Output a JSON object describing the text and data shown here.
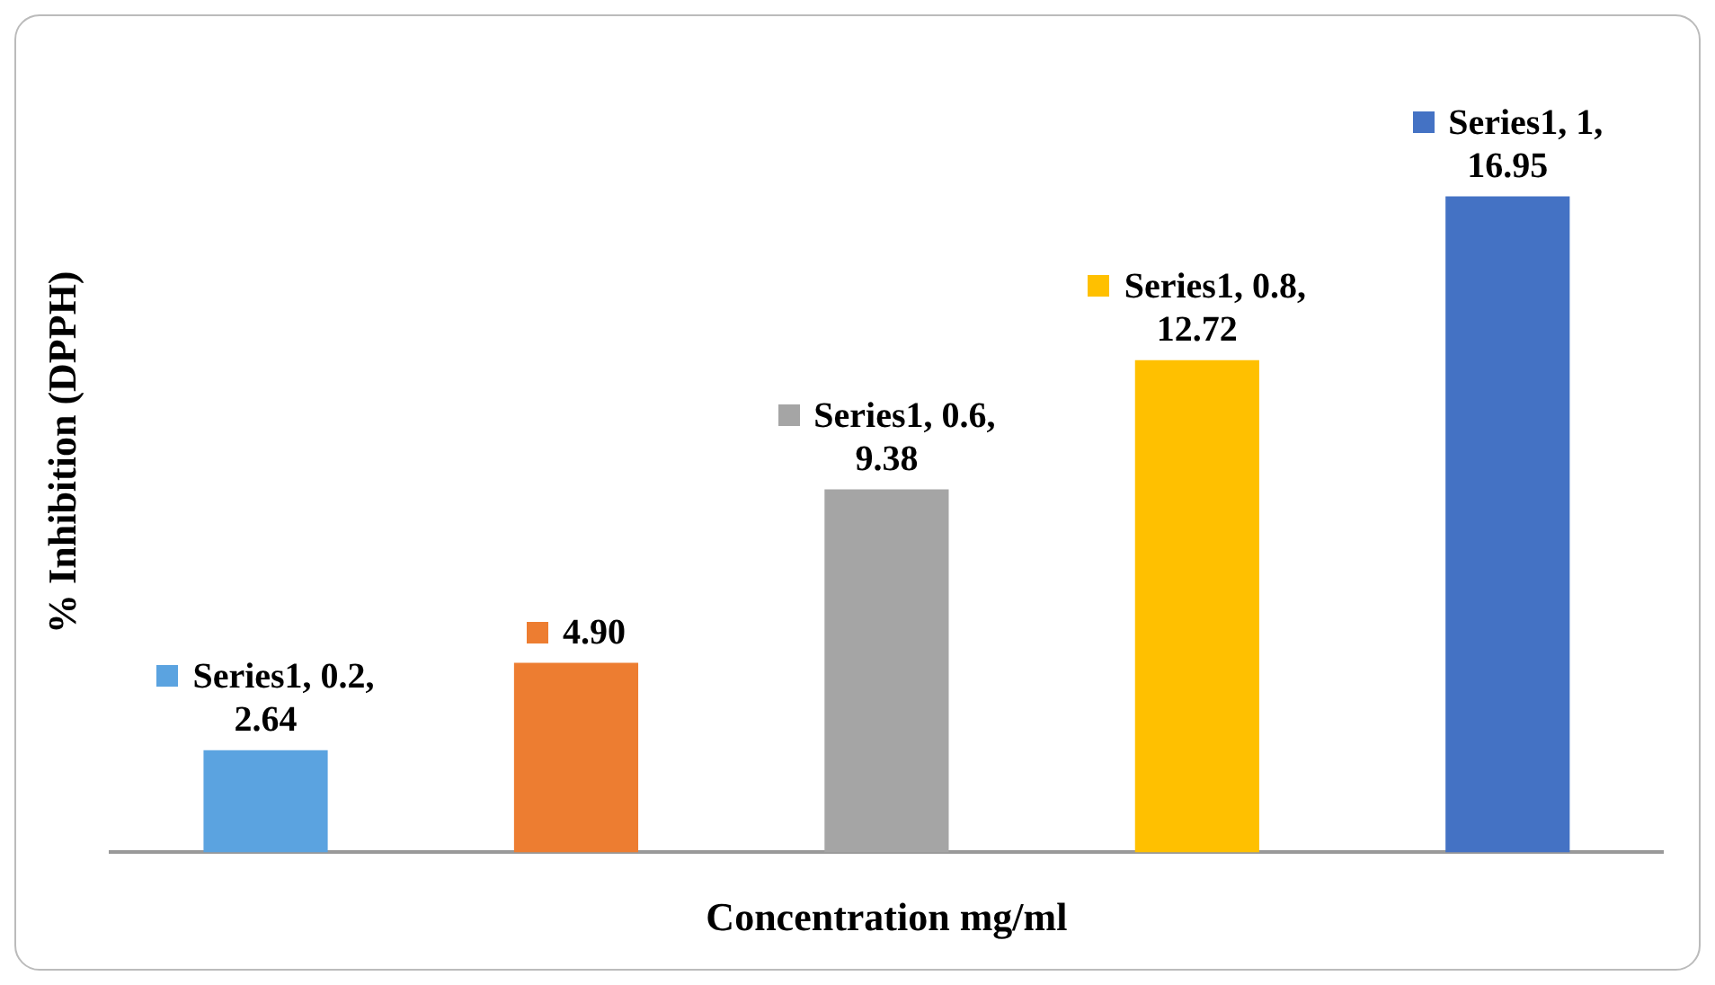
{
  "chart_data": {
    "type": "bar",
    "xlabel": "Concentration mg/ml",
    "ylabel": "% Inhibition (DPPH)",
    "categories": [
      null,
      null,
      null,
      null,
      null
    ],
    "values": [
      2.64,
      4.9,
      9.38,
      12.72,
      16.95
    ],
    "colors": [
      "#5ba3e0",
      "#ed7d31",
      "#a5a5a5",
      "#ffc000",
      "#4472c4"
    ],
    "value_labels": [
      "Series1, 0.2, 2.64",
      "4.90",
      "Series1, 0.6, 9.38",
      "Series1, 0.8, 12.72",
      "Series1, 1, 16.95"
    ],
    "legend": false,
    "grid": false
  }
}
